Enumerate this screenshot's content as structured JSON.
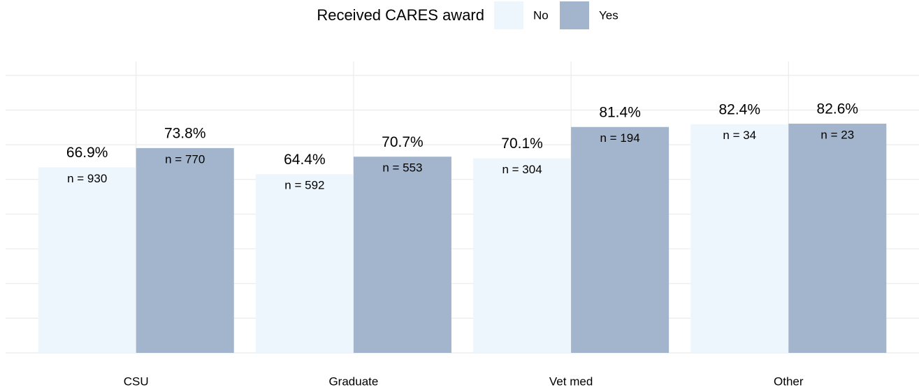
{
  "chart_data": {
    "type": "bar",
    "legend_title": "Received CARES award",
    "legend_position": "top",
    "categories": [
      "CSU",
      "Graduate",
      "Vet med",
      "Other"
    ],
    "series": [
      {
        "name": "No",
        "color": "#eef6fd",
        "values": [
          66.9,
          64.4,
          70.1,
          82.4
        ],
        "value_labels": [
          "66.9%",
          "64.4%",
          "70.1%",
          "82.4%"
        ],
        "n_labels": [
          "n = 930",
          "n = 592",
          "n = 304",
          "n = 34"
        ]
      },
      {
        "name": "Yes",
        "color": "#a3b5cd",
        "values": [
          73.8,
          70.7,
          81.4,
          82.6
        ],
        "value_labels": [
          "73.8%",
          "70.7%",
          "81.4%",
          "82.6%"
        ],
        "n_labels": [
          "n = 770",
          "n = 553",
          "n = 194",
          "n = 23"
        ]
      }
    ],
    "ylim": [
      0,
      105
    ],
    "yticks": [
      0,
      12.5,
      25,
      37.5,
      50,
      62.5,
      75,
      87.5,
      100
    ],
    "grid": true
  }
}
